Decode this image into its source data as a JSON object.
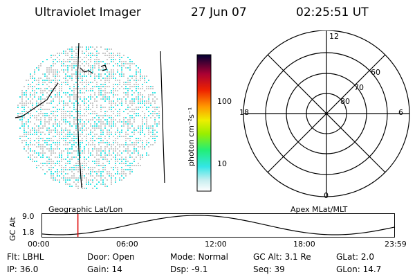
{
  "header": {
    "title": "Ultraviolet Imager",
    "date": "27 Jun 07",
    "time": "02:25:51 UT"
  },
  "colorbar": {
    "unit_label": "photon cm⁻²s⁻¹",
    "ticks": [
      "100",
      "10"
    ]
  },
  "polar": {
    "mlt_labels": {
      "top": "12",
      "left": "18",
      "right": "6",
      "bottom": "0"
    },
    "lat_labels": [
      "60",
      "70",
      "80"
    ]
  },
  "timeline": {
    "left_caption": "Geographic Lat/Lon",
    "right_caption": "Apex MLat/MLT",
    "axis_label": "GC Alt",
    "y_ticks": [
      "9.0",
      "1.8"
    ],
    "x_ticks": [
      "00:00",
      "06:00",
      "12:00",
      "18:00",
      "23:59"
    ],
    "current_time_hours": 2.43
  },
  "status": {
    "row1": {
      "filter": "Flt: LBHL",
      "door": "Door: Open",
      "mode": "Mode: Normal",
      "gc_alt": "GC Alt: 3.1 Re",
      "glat": "GLat:  2.0"
    },
    "row2": {
      "ip": "IP: 36.0",
      "gain": "Gain: 14",
      "dsp": "Dsp:  -9.1",
      "seq": "Seq: 39",
      "glon": "GLon: 14.7"
    }
  },
  "colors": {
    "emission": "#33e6e6",
    "noise": "#c8c8c8",
    "marker": "#dd0000"
  }
}
